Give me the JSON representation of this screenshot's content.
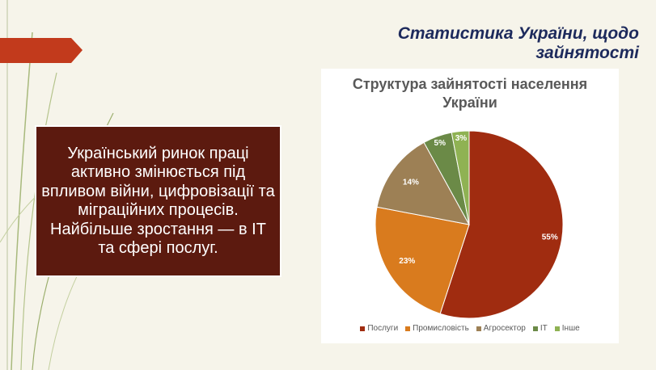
{
  "title": "Статистика України, щодо зайнятості",
  "text": "Український ринок праці активно змінюється під впливом війни, цифровізації та міграційних процесів. Найбільше зростання — в ІТ та сфері послуг.",
  "chart_data": {
    "type": "pie",
    "title": "Структура зайнятості населення України",
    "categories": [
      "Послуги",
      "Промисловість",
      "Агросектор",
      "IT",
      "Інше"
    ],
    "values": [
      55,
      23,
      14,
      5,
      3
    ],
    "value_labels": [
      "55%",
      "23%",
      "14%",
      "5%",
      "3%"
    ],
    "colors": [
      "#a02c10",
      "#d97b1e",
      "#9d8055",
      "#6b8a47",
      "#8fb253"
    ],
    "legend": "bottom"
  }
}
